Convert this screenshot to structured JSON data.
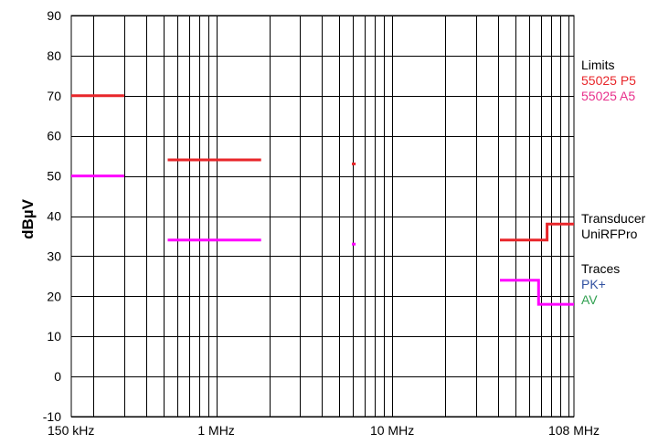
{
  "chart_data": {
    "type": "line",
    "title": "",
    "xlabel": "",
    "ylabel": "dBµV",
    "x_scale": "log",
    "xlim_mhz": [
      0.15,
      108
    ],
    "ylim": [
      -10,
      90
    ],
    "y_ticks": [
      -10,
      0,
      10,
      20,
      30,
      40,
      50,
      60,
      70,
      80,
      90
    ],
    "x_tick_labels": [
      {
        "label": "150 kHz",
        "mhz": 0.15
      },
      {
        "label": "1 MHz",
        "mhz": 1
      },
      {
        "label": "10 MHz",
        "mhz": 10
      },
      {
        "label": "108 MHz",
        "mhz": 108
      }
    ],
    "grid": true,
    "legend": {
      "groups": [
        {
          "heading": "Limits",
          "entries": [
            {
              "text": "55025 P5",
              "color": "#e8262a"
            },
            {
              "text": "55025 A5",
              "color": "#e8308c"
            }
          ]
        },
        {
          "heading": "Transducer",
          "entries": [
            {
              "text": "UniRFPro",
              "color": "#000000"
            }
          ]
        },
        {
          "heading": "Traces",
          "entries": [
            {
              "text": "PK+",
              "color": "#3050a0"
            },
            {
              "text": "AV",
              "color": "#30a050"
            }
          ]
        }
      ]
    },
    "series": [
      {
        "name": "55025 P5",
        "color": "#e8262a",
        "segments": [
          [
            [
              0.15,
              70
            ],
            [
              0.3,
              70
            ]
          ],
          [
            [
              0.53,
              54
            ],
            [
              1.8,
              54
            ]
          ],
          [
            [
              5.9,
              53
            ],
            [
              6.2,
              53
            ]
          ],
          [
            [
              41,
              34
            ],
            [
              76,
              34
            ],
            [
              76,
              38
            ],
            [
              108,
              38
            ]
          ]
        ]
      },
      {
        "name": "55025 A5",
        "color": "#ff00ff",
        "segments": [
          [
            [
              0.15,
              50
            ],
            [
              0.3,
              50
            ]
          ],
          [
            [
              0.53,
              34
            ],
            [
              1.8,
              34
            ]
          ],
          [
            [
              5.9,
              33
            ],
            [
              6.2,
              33
            ]
          ],
          [
            [
              41,
              24
            ],
            [
              68,
              24
            ],
            [
              68,
              18
            ],
            [
              108,
              18
            ]
          ]
        ]
      }
    ]
  }
}
